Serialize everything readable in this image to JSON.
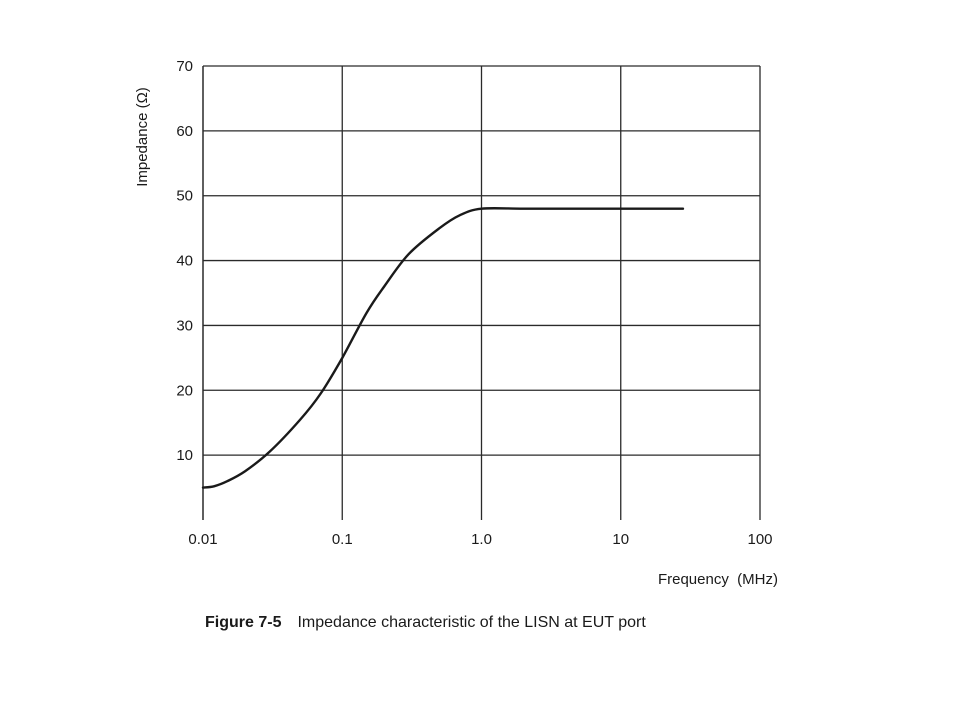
{
  "figure": {
    "number": "Figure 7-5",
    "caption": "Impedance characteristic of the LISN at EUT port"
  },
  "chart_data": {
    "type": "line",
    "xlabel": "Frequency  (MHz)",
    "ylabel": "Impedance (Ω)",
    "x_scale": "log",
    "xlim": [
      0.01,
      100
    ],
    "ylim": [
      0,
      70
    ],
    "x_ticks": [
      0.01,
      0.1,
      1,
      10,
      100
    ],
    "x_tick_labels": [
      "0.01",
      "0.1",
      "1.0",
      "10",
      "100"
    ],
    "y_ticks": [
      10,
      20,
      30,
      40,
      50,
      60,
      70
    ],
    "y_tick_labels": [
      "10",
      "20",
      "30",
      "40",
      "50",
      "60",
      "70"
    ],
    "grid": true,
    "series": [
      {
        "x": [
          0.01,
          0.012,
          0.015,
          0.02,
          0.03,
          0.05,
          0.07,
          0.1,
          0.15,
          0.2,
          0.3,
          0.5,
          0.7,
          1.0,
          2,
          5,
          10,
          20,
          28
        ],
        "y": [
          5,
          5.2,
          6,
          7.5,
          10.5,
          15.5,
          19.5,
          25,
          32,
          36,
          41,
          45,
          47,
          48,
          48,
          48,
          48,
          48,
          48
        ]
      }
    ],
    "colors": {
      "line": "#1a1a1a",
      "grid": "#2a2a2a"
    }
  }
}
